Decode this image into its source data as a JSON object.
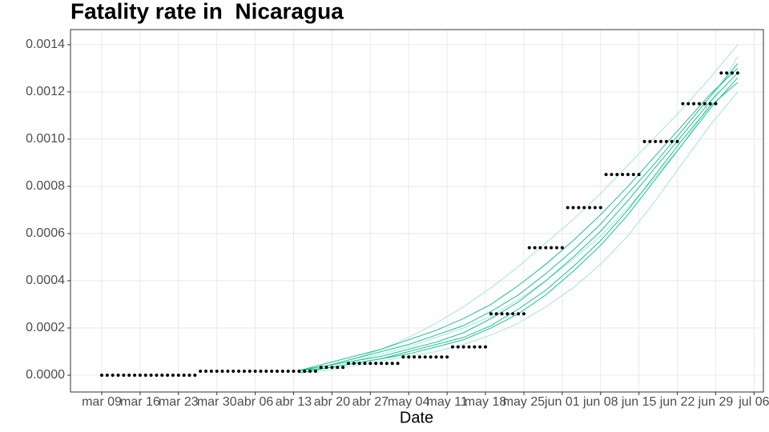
{
  "chart_data": {
    "type": "line",
    "title": "Fatality rate in  Nicaragua",
    "x_label": "Date",
    "xlim": [
      -5.7,
      120.7
    ],
    "xticks": [
      {
        "value": 0,
        "label": "mar 09"
      },
      {
        "value": 7,
        "label": "mar 16"
      },
      {
        "value": 14,
        "label": "mar 23"
      },
      {
        "value": 21,
        "label": "mar 30"
      },
      {
        "value": 28,
        "label": "abr 06"
      },
      {
        "value": 35,
        "label": "abr 13"
      },
      {
        "value": 42,
        "label": "abr 20"
      },
      {
        "value": 49,
        "label": "abr 27"
      },
      {
        "value": 56,
        "label": "may 04"
      },
      {
        "value": 63,
        "label": "may 11"
      },
      {
        "value": 70,
        "label": "may 18"
      },
      {
        "value": 77,
        "label": "may 25"
      },
      {
        "value": 84,
        "label": "jun 01"
      },
      {
        "value": 91,
        "label": "jun 08"
      },
      {
        "value": 98,
        "label": "jun 15"
      },
      {
        "value": 105,
        "label": "jun 22"
      },
      {
        "value": 112,
        "label": "jun 29"
      },
      {
        "value": 119,
        "label": "jul 06"
      }
    ],
    "ylim": [
      -7.12e-05,
      0.001464
    ],
    "yticks": [
      {
        "value": 0,
        "label": "0.0000"
      },
      {
        "value": 0.0002,
        "label": "0.0002"
      },
      {
        "value": 0.0004,
        "label": "0.0004"
      },
      {
        "value": 0.0006,
        "label": "0.0006"
      },
      {
        "value": 0.0008,
        "label": "0.0008"
      },
      {
        "value": 0.001,
        "label": "0.0010"
      },
      {
        "value": 0.0012,
        "label": "0.0012"
      },
      {
        "value": 0.0014,
        "label": "0.0014"
      }
    ],
    "grid": true,
    "series": [
      {
        "type": "line",
        "color": "#a6e6d2",
        "x": [
          36,
          41,
          46,
          51,
          56,
          61,
          66,
          71,
          76,
          81,
          86,
          91,
          96,
          101,
          106,
          111,
          116
        ],
        "values": [
          2e-05,
          4e-05,
          7e-05,
          0.00011,
          0.00016,
          0.00022,
          0.00029,
          0.00037,
          0.00046,
          0.00056,
          0.00066,
          0.00077,
          0.00089,
          0.00101,
          0.00113,
          0.00126,
          0.0014
        ]
      },
      {
        "type": "line",
        "color": "#a6e6d2",
        "x": [
          36,
          41,
          46,
          51,
          56,
          61,
          66,
          71,
          76,
          81,
          86,
          91,
          96,
          101,
          106,
          111,
          116
        ],
        "values": [
          1e-05,
          2e-05,
          4e-05,
          6e-05,
          8e-05,
          0.0001,
          0.00013,
          0.00017,
          0.00022,
          0.00029,
          0.00037,
          0.00047,
          0.00059,
          0.00074,
          0.0009,
          0.00106,
          0.0012
        ]
      },
      {
        "type": "line",
        "color": "#a6e6d2",
        "x": [
          36,
          41,
          46,
          51,
          56,
          61,
          66,
          71,
          76,
          81,
          86,
          91,
          96,
          101,
          106,
          111,
          116
        ],
        "values": [
          2e-05,
          4e-05,
          6e-05,
          9e-05,
          0.00012,
          0.00016,
          0.0002,
          0.00025,
          0.00032,
          0.0004,
          0.00049,
          0.00059,
          0.00071,
          0.00084,
          0.00098,
          0.00115,
          0.00135
        ]
      },
      {
        "type": "line",
        "color": "#1cc193",
        "x": [
          36,
          41,
          46,
          51,
          56,
          61,
          66,
          71,
          76,
          81,
          86,
          91,
          96,
          101,
          106,
          111,
          116
        ],
        "values": [
          2e-05,
          4e-05,
          6e-05,
          8e-05,
          0.00011,
          0.00014,
          0.00018,
          0.00024,
          0.00031,
          0.0004,
          0.0005,
          0.00061,
          0.00074,
          0.00088,
          0.00102,
          0.00116,
          0.00128
        ]
      },
      {
        "type": "line",
        "color": "#1cc193",
        "x": [
          36,
          41,
          46,
          51,
          56,
          61,
          66,
          71,
          76,
          81,
          86,
          91,
          96,
          101,
          106,
          111,
          116
        ],
        "values": [
          2e-05,
          5e-05,
          8e-05,
          0.00011,
          0.00015,
          0.00019,
          0.00024,
          0.0003,
          0.00038,
          0.00047,
          0.00057,
          0.00068,
          0.0008,
          0.00093,
          0.00106,
          0.00119,
          0.0013
        ]
      },
      {
        "type": "line",
        "color": "#1cc193",
        "x": [
          36,
          41,
          46,
          51,
          56,
          61,
          66,
          71,
          76,
          81,
          86,
          91,
          96,
          101,
          106,
          111,
          116
        ],
        "values": [
          1e-05,
          3e-05,
          5e-05,
          7e-05,
          9e-05,
          0.00012,
          0.00015,
          0.0002,
          0.00026,
          0.00034,
          0.00044,
          0.00055,
          0.00068,
          0.00083,
          0.00098,
          0.00113,
          0.00126
        ]
      },
      {
        "type": "line",
        "color": "#1cc193",
        "x": [
          36,
          41,
          46,
          51,
          56,
          61,
          66,
          71,
          76,
          81,
          86,
          91,
          96,
          101,
          106,
          111,
          116
        ],
        "values": [
          2e-05,
          4e-05,
          7e-05,
          0.0001,
          0.00013,
          0.00017,
          0.00021,
          0.00027,
          0.00034,
          0.00043,
          0.00053,
          0.00064,
          0.00077,
          0.0009,
          0.00104,
          0.00118,
          0.00132
        ]
      },
      {
        "type": "line",
        "color": "#1cc193",
        "x": [
          36,
          41,
          46,
          51,
          56,
          61,
          66,
          71,
          76,
          81,
          86,
          91,
          96,
          101,
          106,
          111,
          116
        ],
        "values": [
          2e-05,
          3e-05,
          5e-05,
          7e-05,
          0.0001,
          0.00013,
          0.00016,
          0.00021,
          0.00028,
          0.00036,
          0.00046,
          0.00057,
          0.0007,
          0.00085,
          0.001,
          0.00114,
          0.00124
        ]
      },
      {
        "type": "scatter",
        "color": "#000000",
        "x": [
          0,
          1,
          2,
          3,
          4,
          5,
          6,
          7,
          8,
          9,
          10,
          11,
          12,
          13,
          14,
          15,
          16,
          17,
          18,
          19,
          20,
          21,
          22,
          23,
          24,
          25,
          26,
          27,
          28,
          29,
          30,
          31,
          32,
          33,
          34,
          35,
          36,
          37,
          38,
          39,
          40,
          41,
          42,
          43,
          44,
          45,
          46,
          47,
          48,
          49,
          50,
          51,
          52,
          53,
          54,
          55,
          56,
          57,
          58,
          59,
          60,
          61,
          62,
          63,
          64,
          65,
          66,
          67,
          68,
          69,
          70,
          71,
          72,
          73,
          74,
          75,
          76,
          77,
          78,
          79,
          80,
          81,
          82,
          83,
          84,
          85,
          86,
          87,
          88,
          89,
          90,
          91,
          92,
          93,
          94,
          95,
          96,
          97,
          98,
          99,
          100,
          101,
          102,
          103,
          104,
          105,
          106,
          107,
          108,
          109,
          110,
          111,
          112,
          113,
          114,
          115,
          116
        ],
        "values": [
          0,
          0,
          0,
          0,
          0,
          0,
          0,
          0,
          0,
          0,
          0,
          0,
          0,
          0,
          0,
          0,
          0,
          0,
          1.7e-05,
          1.7e-05,
          1.7e-05,
          1.7e-05,
          1.7e-05,
          1.7e-05,
          1.7e-05,
          1.7e-05,
          1.7e-05,
          1.7e-05,
          1.7e-05,
          1.7e-05,
          1.7e-05,
          1.7e-05,
          1.7e-05,
          1.7e-05,
          1.7e-05,
          1.7e-05,
          1.7e-05,
          1.7e-05,
          1.7e-05,
          1.7e-05,
          3.3e-05,
          3.3e-05,
          3.3e-05,
          3.3e-05,
          3.3e-05,
          5e-05,
          5e-05,
          5e-05,
          5e-05,
          5e-05,
          5e-05,
          5e-05,
          5e-05,
          5e-05,
          5e-05,
          7.7e-05,
          7.7e-05,
          7.7e-05,
          7.7e-05,
          7.7e-05,
          7.7e-05,
          7.7e-05,
          7.7e-05,
          7.7e-05,
          0.00012,
          0.00012,
          0.00012,
          0.00012,
          0.00012,
          0.00012,
          0.00012,
          0.00026,
          0.00026,
          0.00026,
          0.00026,
          0.00026,
          0.00026,
          0.00026,
          0.00054,
          0.00054,
          0.00054,
          0.00054,
          0.00054,
          0.00054,
          0.00054,
          0.00071,
          0.00071,
          0.00071,
          0.00071,
          0.00071,
          0.00071,
          0.00071,
          0.00085,
          0.00085,
          0.00085,
          0.00085,
          0.00085,
          0.00085,
          0.00085,
          0.00099,
          0.00099,
          0.00099,
          0.00099,
          0.00099,
          0.00099,
          0.00099,
          0.00115,
          0.00115,
          0.00115,
          0.00115,
          0.00115,
          0.00115,
          0.00115,
          0.00128,
          0.00128,
          0.00128,
          0.00128
        ]
      }
    ]
  }
}
